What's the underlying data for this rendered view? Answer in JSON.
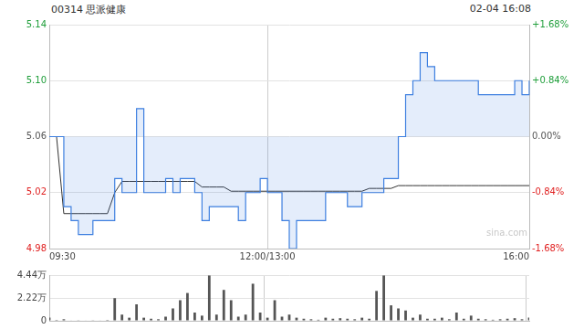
{
  "chart_data": [
    {
      "type": "line",
      "title": "00314 思派健康",
      "subtitle": "02-04 16:08",
      "annotations": [
        "sina.com"
      ],
      "categories": [
        "09:30",
        null,
        null,
        null,
        null,
        null,
        null,
        null,
        null,
        null,
        null,
        null,
        null,
        null,
        null,
        null,
        null,
        null,
        null,
        null,
        null,
        null,
        null,
        null,
        null,
        null,
        null,
        null,
        null,
        null,
        "12:00/13:00",
        null,
        null,
        null,
        null,
        null,
        null,
        null,
        null,
        null,
        null,
        null,
        null,
        null,
        null,
        null,
        null,
        null,
        null,
        null,
        null,
        null,
        null,
        null,
        null,
        null,
        null,
        null,
        null,
        null,
        null,
        null,
        null,
        null,
        null,
        null,
        "16:00"
      ],
      "series": [
        {
          "color": "#3d7fe0",
          "axis": "y",
          "baseline": 5.06,
          "values": [
            5.06,
            5.06,
            5.01,
            5.0,
            4.99,
            4.99,
            5.0,
            5.0,
            5.0,
            5.03,
            5.02,
            5.02,
            5.08,
            5.02,
            5.02,
            5.02,
            5.03,
            5.02,
            5.03,
            5.03,
            5.02,
            5.0,
            5.01,
            5.01,
            5.01,
            5.01,
            5.0,
            5.02,
            5.02,
            5.03,
            5.02,
            5.02,
            5.0,
            4.98,
            5.0,
            5.0,
            5.0,
            5.0,
            5.02,
            5.02,
            5.02,
            5.01,
            5.01,
            5.02,
            5.02,
            5.02,
            5.03,
            5.03,
            5.06,
            5.09,
            5.1,
            5.12,
            5.11,
            5.1,
            5.1,
            5.1,
            5.1,
            5.1,
            5.1,
            5.09,
            5.09,
            5.09,
            5.09,
            5.09,
            5.1,
            5.09,
            5.1
          ]
        },
        {
          "color": "#333333",
          "axis": "y",
          "values": [
            5.06,
            5.06,
            5.005,
            5.005,
            5.005,
            5.005,
            5.005,
            5.005,
            5.005,
            5.02,
            5.028,
            5.028,
            5.028,
            5.028,
            5.028,
            5.028,
            5.028,
            5.028,
            5.028,
            5.028,
            5.028,
            5.024,
            5.024,
            5.024,
            5.024,
            5.021,
            5.021,
            5.021,
            5.021,
            5.021,
            5.021,
            5.021,
            5.021,
            5.021,
            5.021,
            5.021,
            5.021,
            5.021,
            5.021,
            5.021,
            5.021,
            5.021,
            5.021,
            5.021,
            5.023,
            5.023,
            5.023,
            5.023,
            5.025,
            5.025,
            5.025,
            5.025,
            5.025,
            5.025,
            5.025,
            5.025,
            5.025,
            5.025,
            5.025,
            5.025,
            5.025,
            5.025,
            5.025,
            5.025,
            5.025,
            5.025,
            5.025
          ]
        }
      ],
      "ylim": [
        4.98,
        5.14
      ],
      "yticks": [
        4.98,
        5.02,
        5.06,
        {
          "value": 5.1,
          "label": "5.10"
        },
        5.14
      ],
      "y2lim": [
        -1.68,
        1.68
      ],
      "y2ticks": [
        {
          "value": -1.68,
          "label": "-1.68%"
        },
        {
          "value": -0.84,
          "label": "-0.84%"
        },
        {
          "value": 0,
          "label": "0.00%"
        },
        {
          "value": 0.84,
          "label": "+0.84%"
        },
        {
          "value": 1.68,
          "label": "+1.68%"
        }
      ],
      "grid": true
    },
    {
      "type": "bar",
      "color": "#555555",
      "tick_labels": "y",
      "categories": [
        "09:30",
        null,
        null,
        null,
        null,
        null,
        null,
        null,
        null,
        null,
        null,
        null,
        null,
        null,
        null,
        null,
        null,
        null,
        null,
        null,
        null,
        null,
        null,
        null,
        null,
        null,
        null,
        null,
        null,
        null,
        "12:00/13:00",
        null,
        null,
        null,
        null,
        null,
        null,
        null,
        null,
        null,
        null,
        null,
        null,
        null,
        null,
        null,
        null,
        null,
        null,
        null,
        null,
        null,
        null,
        null,
        null,
        null,
        null,
        null,
        null,
        null,
        null,
        null,
        null,
        null,
        null,
        null,
        "16:00"
      ],
      "values": [
        3000,
        800,
        1500,
        500,
        600,
        400,
        300,
        500,
        800,
        22000,
        6000,
        3000,
        16000,
        3000,
        2000,
        1500,
        4000,
        12000,
        20000,
        27000,
        8000,
        5000,
        44000,
        6000,
        30000,
        20000,
        4000,
        6000,
        36000,
        8000,
        3000,
        20000,
        4000,
        6000,
        3000,
        2000,
        1500,
        1000,
        3000,
        2000,
        2500,
        2000,
        1500,
        3000,
        2000,
        29000,
        44000,
        15000,
        12000,
        10000,
        3000,
        6000,
        2000,
        2000,
        3000,
        1500,
        8000,
        2000,
        5000,
        2000,
        1500,
        1000,
        1500,
        2000,
        2500,
        1500,
        3000
      ],
      "ylim": [
        0,
        44400
      ],
      "yticks": [
        0,
        {
          "value": 22200,
          "label": "2.22万"
        },
        {
          "value": 44400,
          "label": "4.44万"
        }
      ],
      "grid": true
    }
  ]
}
